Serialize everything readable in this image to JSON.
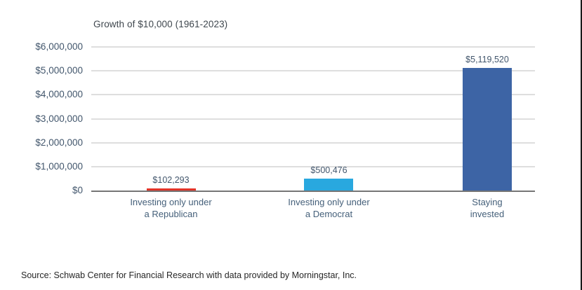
{
  "chart_data": {
    "type": "bar",
    "title": "Growth of $10,000 (1961-2023)",
    "categories": [
      "Investing only under\na Republican",
      "Investing only under\na Democrat",
      "Staying\ninvested"
    ],
    "values": [
      102293,
      500476,
      5119520
    ],
    "value_labels": [
      "$102,293",
      "$500,476",
      "$5,119,520"
    ],
    "bar_colors": [
      "#e23328",
      "#29a8df",
      "#3d64a5"
    ],
    "y_ticks": [
      {
        "label": "$6,000,000",
        "value": 6000000
      },
      {
        "label": "$5,000,000",
        "value": 5000000
      },
      {
        "label": "$4,000,000",
        "value": 4000000
      },
      {
        "label": "$3,000,000",
        "value": 3000000
      },
      {
        "label": "$2,000,000",
        "value": 2000000
      },
      {
        "label": "$1,000,000",
        "value": 1000000
      },
      {
        "label": "$0",
        "value": 0
      }
    ],
    "ylim": [
      0,
      6000000
    ],
    "grid": true,
    "legend": "none"
  },
  "source": "Source: Schwab Center for Financial Research with data provided by Morningstar, Inc."
}
